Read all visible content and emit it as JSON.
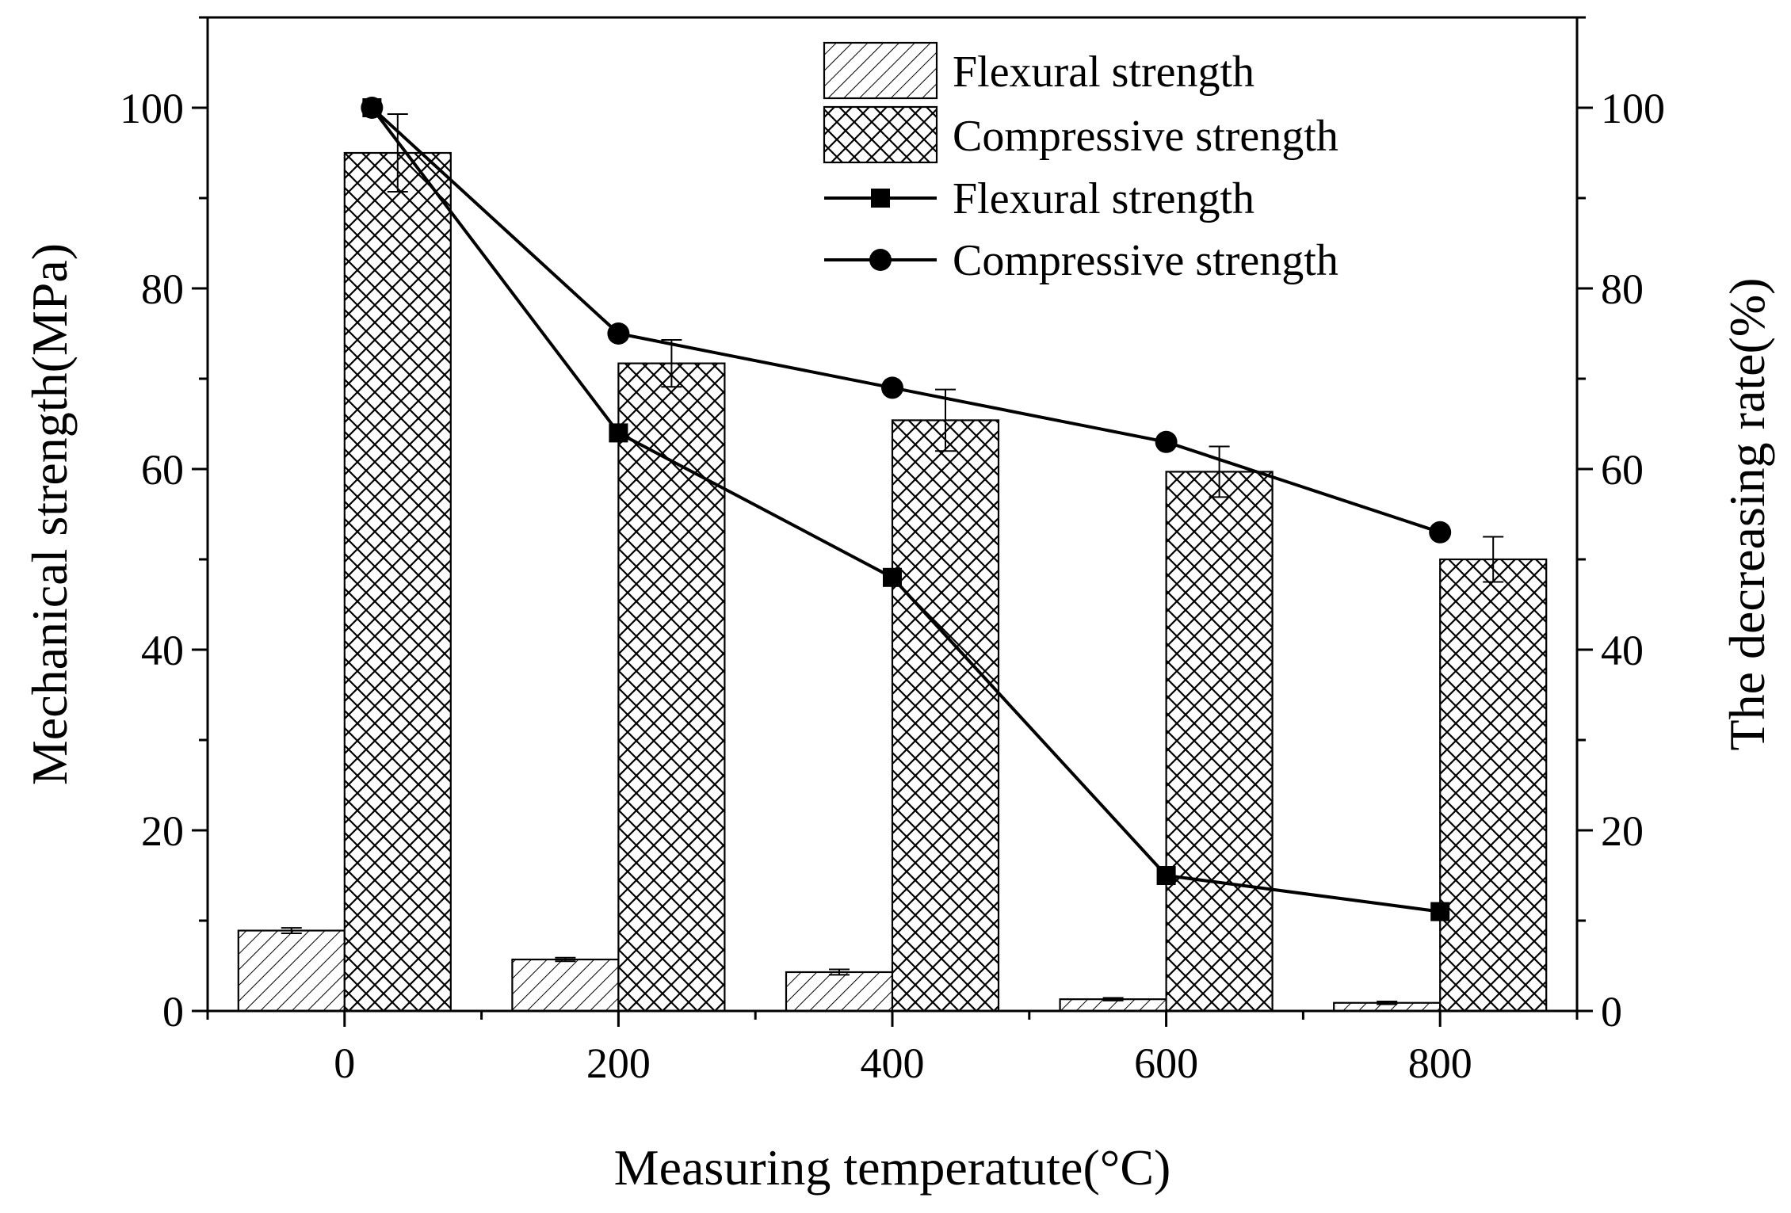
{
  "chart_data": {
    "type": "bar",
    "xlabel": "Measuring temperatute(°C)",
    "ylabel": "Mechanical strength(MPa)",
    "y2label": "The decreasing rate(%)",
    "xlim": [
      -100,
      900
    ],
    "xticks": [
      0,
      200,
      400,
      600,
      800
    ],
    "ylim": [
      0,
      110
    ],
    "yticks": [
      0,
      20,
      40,
      60,
      80,
      100
    ],
    "y2lim": [
      0,
      110
    ],
    "y2ticks": [
      0,
      20,
      40,
      60,
      80,
      100
    ],
    "grid": false,
    "legend_position": "top-right",
    "bar_series": [
      {
        "name": "Flexural strength",
        "pattern": "diagonal-hatch",
        "axis": "left",
        "x": [
          0,
          200,
          400,
          600,
          800
        ],
        "values": [
          8.9,
          5.7,
          4.3,
          1.3,
          0.9
        ],
        "errors": [
          0.3,
          0.2,
          0.3,
          0.15,
          0.15
        ]
      },
      {
        "name": "Compressive strength",
        "pattern": "cross-hatch",
        "axis": "left",
        "x": [
          0,
          200,
          400,
          600,
          800
        ],
        "values": [
          95.0,
          71.7,
          65.4,
          59.7,
          50.0
        ],
        "errors": [
          4.3,
          2.6,
          3.4,
          2.8,
          2.5
        ]
      }
    ],
    "line_series": [
      {
        "name": "Flexural strength",
        "marker": "square",
        "axis": "right",
        "x": [
          20,
          200,
          400,
          600,
          800
        ],
        "values": [
          100,
          64,
          48,
          15,
          11
        ]
      },
      {
        "name": "Compressive strength",
        "marker": "circle",
        "axis": "right",
        "x": [
          20,
          200,
          400,
          600,
          800
        ],
        "values": [
          100,
          75,
          69,
          63,
          53
        ]
      }
    ]
  }
}
